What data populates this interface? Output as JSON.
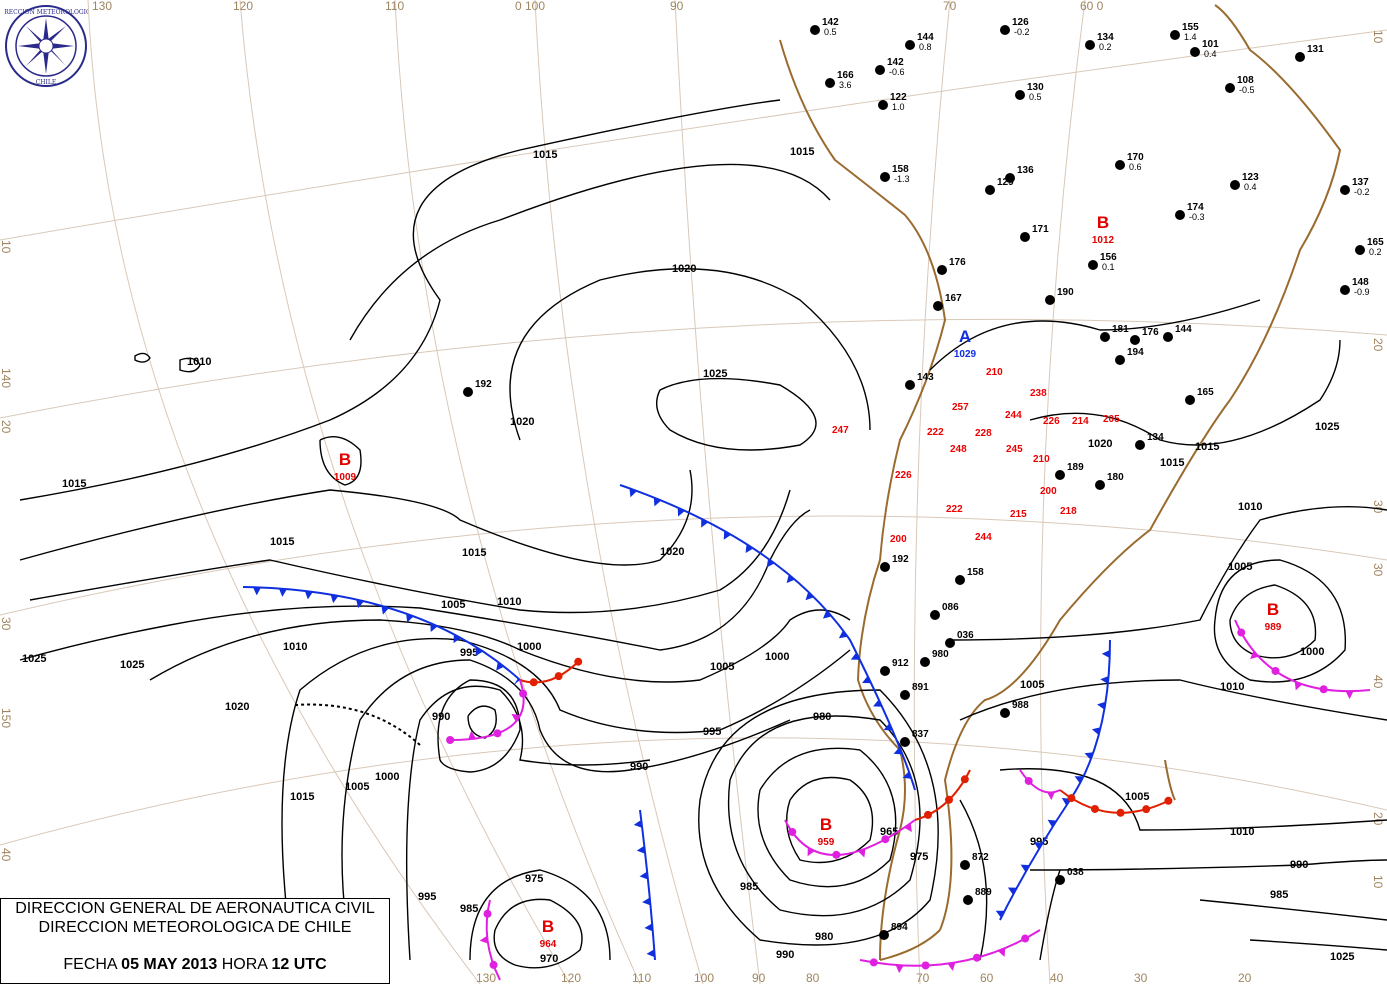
{
  "title_box": {
    "line1": "DIRECCION GENERAL DE AERONAUTICA CIVIL",
    "line2": "DIRECCION METEOROLOGICA DE CHILE",
    "date_label": "FECHA",
    "date_value": "05 MAY 2013",
    "hour_label": "HORA",
    "hour_value": "12 UTC"
  },
  "logo": {
    "text_top": "DIRECCION METEOROLOGICA",
    "text_bottom": "CHILE"
  },
  "graticule_labels": {
    "top": [
      "130",
      "120",
      "110",
      "0 100",
      "90",
      "70",
      "60 0"
    ],
    "bottom": [
      "130",
      "120",
      "110",
      "100",
      "90",
      "80",
      "70",
      "60",
      "40",
      "30",
      "20"
    ],
    "left": [
      "10",
      "140",
      "20",
      "30",
      "150",
      "40"
    ],
    "right": [
      "10",
      "20",
      "30",
      "30",
      "40",
      "20",
      "10"
    ]
  },
  "pressure_centers": [
    {
      "type": "B",
      "value": "1009",
      "color": "#e00000"
    },
    {
      "type": "B",
      "value": "989",
      "color": "#e00000"
    },
    {
      "type": "B",
      "value": "959",
      "color": "#e00000"
    },
    {
      "type": "B",
      "value": "964",
      "color": "#e00000"
    },
    {
      "type": "A",
      "value": "1029",
      "color": "#1030e0"
    },
    {
      "type": "B",
      "value": "1012",
      "color": "#e00000"
    }
  ],
  "isobar_labels": [
    "1015",
    "1015",
    "1020",
    "1025",
    "1020",
    "1010",
    "1015",
    "1015",
    "1020",
    "1015",
    "1010",
    "1005",
    "1000",
    "995",
    "990",
    "1010",
    "1005",
    "1000",
    "995",
    "990",
    "1025",
    "1025",
    "1020",
    "1015",
    "1005",
    "1000",
    "995",
    "985",
    "975",
    "970",
    "980",
    "965",
    "975",
    "985",
    "980",
    "990",
    "1005",
    "1010",
    "1005",
    "1000",
    "1010",
    "1005",
    "995",
    "990",
    "985",
    "1015",
    "1010",
    "1020",
    "1015",
    "1025",
    "1025"
  ],
  "stations": [
    {
      "id": "142",
      "p": "0.5"
    },
    {
      "id": "144",
      "p": "0.8"
    },
    {
      "id": "126",
      "p": "-0.2"
    },
    {
      "id": "134",
      "p": "0.2"
    },
    {
      "id": "155",
      "p": "1.4"
    },
    {
      "id": "101",
      "p": "0.4"
    },
    {
      "id": "131",
      "p": ""
    },
    {
      "id": "166",
      "p": "3.6"
    },
    {
      "id": "142",
      "p": "-0.6"
    },
    {
      "id": "122",
      "p": "1.0"
    },
    {
      "id": "130",
      "p": "0.5"
    },
    {
      "id": "108",
      "p": "-0.5"
    },
    {
      "id": "158",
      "p": "-1.3"
    },
    {
      "id": "129",
      "p": ""
    },
    {
      "id": "136",
      "p": ""
    },
    {
      "id": "170",
      "p": "0.6"
    },
    {
      "id": "174",
      "p": "-0.3"
    },
    {
      "id": "123",
      "p": "0.4"
    },
    {
      "id": "137",
      "p": "-0.2"
    },
    {
      "id": "165",
      "p": "0.2"
    },
    {
      "id": "171",
      "p": ""
    },
    {
      "id": "176",
      "p": ""
    },
    {
      "id": "190",
      "p": ""
    },
    {
      "id": "156",
      "p": "0.1"
    },
    {
      "id": "148",
      "p": "-0.9"
    },
    {
      "id": "167",
      "p": ""
    },
    {
      "id": "176",
      "p": ""
    },
    {
      "id": "181",
      "p": ""
    },
    {
      "id": "144",
      "p": ""
    },
    {
      "id": "194",
      "p": ""
    },
    {
      "id": "192",
      "p": ""
    },
    {
      "id": "165",
      "p": ""
    },
    {
      "id": "143",
      "p": ""
    },
    {
      "id": "134",
      "p": ""
    },
    {
      "id": "189",
      "p": ""
    },
    {
      "id": "180",
      "p": ""
    },
    {
      "id": "192",
      "p": ""
    },
    {
      "id": "158",
      "p": ""
    },
    {
      "id": "086",
      "p": ""
    },
    {
      "id": "036",
      "p": ""
    },
    {
      "id": "912",
      "p": ""
    },
    {
      "id": "980",
      "p": ""
    },
    {
      "id": "891",
      "p": ""
    },
    {
      "id": "988",
      "p": ""
    },
    {
      "id": "837",
      "p": ""
    },
    {
      "id": "872",
      "p": ""
    },
    {
      "id": "889",
      "p": ""
    },
    {
      "id": "038",
      "p": ""
    },
    {
      "id": "894",
      "p": ""
    }
  ],
  "red_values": [
    "247",
    "210",
    "257",
    "238",
    "244",
    "226",
    "222",
    "245",
    "248",
    "228",
    "214",
    "205",
    "210",
    "226",
    "222",
    "200",
    "215",
    "218",
    "200",
    "244"
  ],
  "colors": {
    "isobar": "#000000",
    "coast": "#9a6b2f",
    "grid": "#d9c8b8",
    "cold_front": "#1030e0",
    "warm_front": "#e02000",
    "occluded_front": "#e020e0",
    "low": "#e00000",
    "high": "#1030e0"
  }
}
